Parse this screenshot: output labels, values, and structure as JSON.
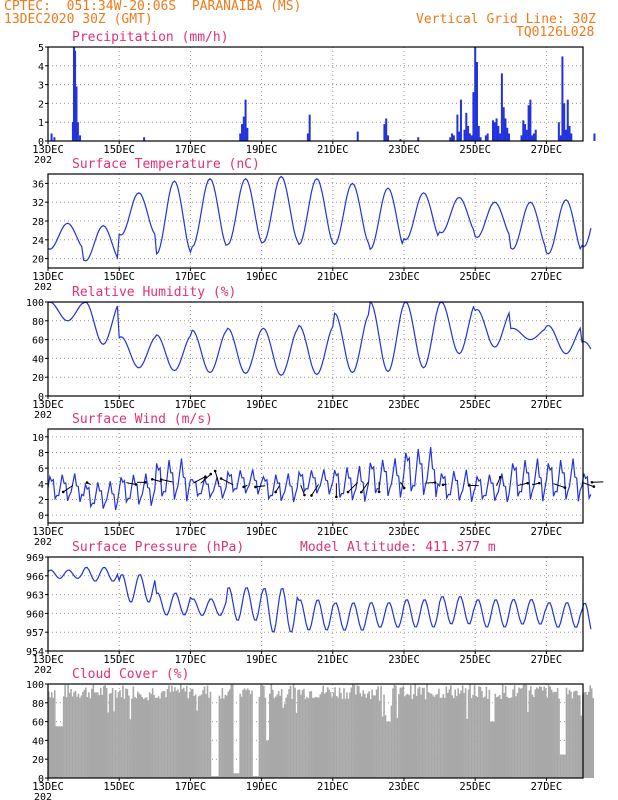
{
  "header": {
    "line1": "CPTEC:  051:34W-20:06S  PARANAIBA (MS)",
    "line2": "13DEC2020 30Z (GMT)",
    "grid_note": "Vertical Grid Line: 30Z",
    "code": "TQ0126L028"
  },
  "colors": {
    "title": "#e0307a",
    "header": "#f07a1a",
    "series": "#2233dd",
    "cloud": "#a8a8a8"
  },
  "dates": [
    "13DEC",
    "15DEC",
    "17DEC",
    "19DEC",
    "21DEC",
    "23DEC",
    "25DEC",
    "27DEC"
  ],
  "year_stub": "202",
  "chart_data": [
    {
      "type": "bar",
      "title": "Precipitation (mm/h)",
      "ylim": [
        0,
        5
      ],
      "yticks": [
        "0",
        "1",
        "2",
        "3",
        "4",
        "5"
      ],
      "x_unit": "day_index_from_13DEC",
      "points": [
        [
          0.1,
          0.4
        ],
        [
          0.18,
          0.2
        ],
        [
          0.7,
          1.0
        ],
        [
          0.73,
          5.0
        ],
        [
          0.76,
          4.8
        ],
        [
          0.8,
          2.9
        ],
        [
          0.84,
          1.0
        ],
        [
          0.9,
          0.3
        ],
        [
          2.7,
          0.2
        ],
        [
          5.4,
          0.4
        ],
        [
          5.45,
          0.9
        ],
        [
          5.5,
          1.3
        ],
        [
          5.55,
          2.2
        ],
        [
          5.6,
          0.7
        ],
        [
          7.3,
          0.4
        ],
        [
          7.35,
          1.4
        ],
        [
          8.7,
          0.5
        ],
        [
          9.45,
          0.9
        ],
        [
          9.5,
          1.2
        ],
        [
          9.55,
          0.3
        ],
        [
          9.9,
          0.1
        ],
        [
          10.4,
          0.2
        ],
        [
          11.3,
          0.2
        ],
        [
          11.35,
          0.4
        ],
        [
          11.4,
          0.3
        ],
        [
          11.5,
          1.4
        ],
        [
          11.55,
          0.5
        ],
        [
          11.6,
          2.2
        ],
        [
          11.7,
          0.6
        ],
        [
          11.75,
          1.5
        ],
        [
          11.8,
          0.8
        ],
        [
          11.85,
          0.4
        ],
        [
          11.9,
          0.3
        ],
        [
          11.95,
          2.6
        ],
        [
          12.0,
          5.0
        ],
        [
          12.05,
          4.2
        ],
        [
          12.1,
          0.8
        ],
        [
          12.15,
          0.2
        ],
        [
          12.3,
          0.3
        ],
        [
          12.35,
          0.4
        ],
        [
          12.5,
          1.1
        ],
        [
          12.55,
          1.0
        ],
        [
          12.6,
          1.2
        ],
        [
          12.65,
          0.8
        ],
        [
          12.7,
          0.4
        ],
        [
          12.75,
          3.6
        ],
        [
          12.8,
          1.8
        ],
        [
          12.85,
          1.2
        ],
        [
          12.9,
          0.7
        ],
        [
          12.95,
          0.4
        ],
        [
          13.3,
          0.3
        ],
        [
          13.35,
          1.1
        ],
        [
          13.4,
          0.9
        ],
        [
          13.45,
          0.6
        ],
        [
          13.5,
          1.9
        ],
        [
          13.55,
          2.2
        ],
        [
          13.6,
          0.3
        ],
        [
          13.65,
          0.4
        ],
        [
          13.7,
          0.6
        ],
        [
          14.35,
          1.0
        ],
        [
          14.4,
          0.3
        ],
        [
          14.45,
          4.5
        ],
        [
          14.5,
          2.0
        ],
        [
          14.55,
          0.6
        ],
        [
          14.6,
          2.2
        ],
        [
          14.65,
          0.8
        ],
        [
          14.7,
          0.4
        ],
        [
          15.35,
          0.4
        ]
      ]
    },
    {
      "type": "line",
      "title": "Surface Temperature (nC)",
      "ylim": [
        18,
        38
      ],
      "yticks": [
        "20",
        "24",
        "28",
        "32",
        "36"
      ],
      "ytick_values": [
        20,
        24,
        28,
        32,
        36
      ],
      "lows": [
        22,
        19.5,
        25,
        21,
        22.5,
        23,
        23.5,
        23,
        23,
        22,
        24,
        25.5,
        24.5,
        22,
        21,
        22.5
      ],
      "highs": [
        27.5,
        27,
        34,
        36.5,
        37,
        37,
        37.5,
        37,
        36,
        35,
        34,
        33,
        32,
        32,
        32.5,
        34
      ]
    },
    {
      "type": "line",
      "title": "Relative Humidity (%)",
      "ylim": [
        0,
        100
      ],
      "yticks": [
        "0",
        "20",
        "40",
        "60",
        "80",
        "100"
      ],
      "ytick_values": [
        0,
        20,
        40,
        60,
        80,
        100
      ],
      "lows": [
        80,
        55,
        30,
        27,
        25,
        24,
        22,
        23,
        25,
        26,
        30,
        45,
        52,
        60,
        45,
        35
      ],
      "highs": [
        100,
        100,
        63,
        65,
        70,
        72,
        72,
        75,
        88,
        100,
        100,
        100,
        92,
        72,
        75,
        58
      ]
    },
    {
      "type": "line",
      "title": "Surface Wind (m/s)",
      "ylim": [
        -1,
        11
      ],
      "yticks": [
        "0",
        "2",
        "4",
        "6",
        "8",
        "10"
      ],
      "ytick_values": [
        0,
        2,
        4,
        6,
        8,
        10
      ],
      "lows": [
        1.5,
        0.5,
        1,
        1.5,
        2,
        2.5,
        1.5,
        2.5,
        1.5,
        2,
        2,
        1.5,
        1.5,
        1.5,
        1.5,
        1.5
      ],
      "highs": [
        5.5,
        4.5,
        5.5,
        7.5,
        5,
        6,
        5.5,
        6,
        6.5,
        7.5,
        9,
        6,
        5.5,
        7.5,
        7.5,
        6
      ],
      "arrows": [
        [
          0.7,
          1.2
        ],
        [
          1.2,
          0.6
        ],
        [
          2.2,
          0.2
        ],
        [
          2.5,
          0.25
        ],
        [
          3.2,
          0.8
        ],
        [
          3.5,
          0.9
        ],
        [
          4.1,
          0.1
        ],
        [
          4.3,
          0.2
        ],
        [
          4.8,
          0.6
        ],
        [
          5.2,
          1.0
        ],
        [
          5.6,
          1.4
        ],
        [
          6.1,
          1.2
        ],
        [
          6.5,
          1.4
        ],
        [
          7.1,
          1.6
        ],
        [
          7.6,
          1.3
        ],
        [
          8.1,
          1.5
        ],
        [
          8.7,
          1.2
        ],
        [
          9.0,
          1.3
        ],
        [
          9.3,
          1.5
        ],
        [
          9.9,
          1.6
        ],
        [
          10.6,
          1.8
        ],
        [
          11.2,
          1.4
        ],
        [
          12.1,
          1.2
        ],
        [
          12.6,
          0.4
        ],
        [
          13.2,
          0.2
        ],
        [
          13.6,
          0.3
        ],
        [
          14.2,
          0.1
        ],
        [
          15.0,
          0.05
        ],
        [
          15.6,
          0.9
        ]
      ]
    },
    {
      "type": "line",
      "title": "Surface Pressure (hPa)",
      "note": "Model Altitude: 411.377 m",
      "ylim": [
        954,
        969
      ],
      "yticks": [
        "954",
        "957",
        "960",
        "963",
        "966",
        "969"
      ],
      "ytick_values": [
        954,
        957,
        960,
        963,
        966,
        969
      ],
      "lows": [
        965.5,
        965,
        961.5,
        959.5,
        959.5,
        958.5,
        956.5,
        957,
        957,
        957.5,
        957.5,
        958,
        957.5,
        958,
        957.5,
        956
      ],
      "highs": [
        967,
        967.5,
        966.5,
        963.5,
        962.5,
        964.5,
        964.5,
        962.5,
        962,
        962,
        962.5,
        963,
        962.5,
        962.5,
        962,
        962
      ]
    },
    {
      "type": "bar",
      "title": "Cloud Cover (%)",
      "ylim": [
        0,
        100
      ],
      "yticks": [
        "0",
        "20",
        "40",
        "60",
        "80",
        "100"
      ],
      "values_desc": "hourly cloud fraction, mostly 85-100 with clear gaps",
      "gaps": [
        [
          0.2,
          0.4,
          55
        ],
        [
          4.55,
          4.75,
          2
        ],
        [
          5.2,
          5.35,
          5
        ],
        [
          5.75,
          5.9,
          2
        ],
        [
          6.1,
          6.2,
          40
        ],
        [
          9.5,
          9.6,
          60
        ],
        [
          12.4,
          12.5,
          60
        ],
        [
          14.35,
          14.5,
          25
        ]
      ]
    }
  ]
}
